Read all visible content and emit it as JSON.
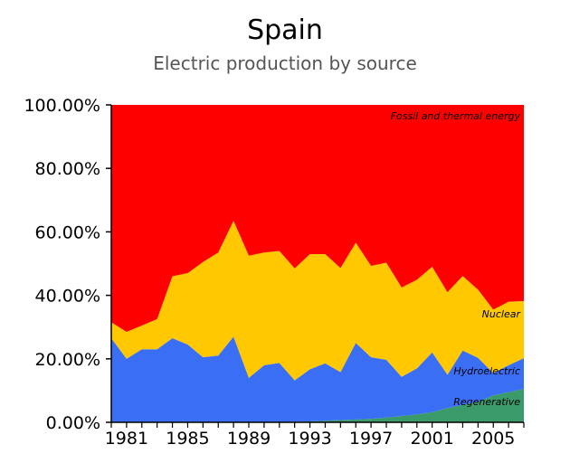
{
  "chart_data": {
    "type": "area",
    "stacked": true,
    "percent": true,
    "title": "Spain",
    "subtitle": "Electric production by source",
    "xlabel": "",
    "ylabel": "",
    "x": [
      1980,
      1981,
      1982,
      1983,
      1984,
      1985,
      1986,
      1987,
      1988,
      1989,
      1990,
      1991,
      1992,
      1993,
      1994,
      1995,
      1996,
      1997,
      1998,
      1999,
      2000,
      2001,
      2002,
      2003,
      2004,
      2005,
      2006,
      2007
    ],
    "xlim": [
      1980,
      2007
    ],
    "x_ticks": [
      1981,
      1985,
      1989,
      1993,
      1997,
      2001,
      2005
    ],
    "x_tick_labels": [
      "1981",
      "1985",
      "1989",
      "1993",
      "1997",
      "2001",
      "2005"
    ],
    "ylim": [
      0,
      100
    ],
    "y_ticks": [
      0,
      20,
      40,
      60,
      80,
      100
    ],
    "y_tick_labels": [
      "0.00%",
      "20.00%",
      "40.00%",
      "60.00%",
      "80.00%",
      "100.00%"
    ],
    "grid": false,
    "series": [
      {
        "name": "Regenerative",
        "color": "#3a9a6a",
        "values": [
          0.0,
          0.0,
          0.0,
          0.0,
          0.0,
          0.0,
          0.0,
          0.0,
          0.0,
          0.0,
          0.0,
          0.1,
          0.2,
          0.3,
          0.5,
          0.7,
          0.9,
          1.1,
          1.5,
          2.0,
          2.5,
          3.2,
          4.5,
          5.5,
          6.5,
          8.5,
          9.5,
          10.5
        ]
      },
      {
        "name": "Hydroelectric",
        "color": "#3a6ef5",
        "values": [
          26.5,
          20.0,
          23.0,
          23.0,
          26.5,
          24.5,
          20.5,
          21.0,
          27.0,
          14.0,
          18.0,
          18.6,
          13.0,
          16.4,
          18.1,
          15.1,
          24.1,
          19.4,
          18.2,
          12.3,
          14.5,
          18.8,
          10.5,
          17.1,
          13.8,
          7.0,
          8.5,
          9.7
        ]
      },
      {
        "name": "Nuclear",
        "color": "#ffc800",
        "values": [
          5.0,
          8.5,
          7.5,
          9.5,
          19.5,
          22.5,
          30.0,
          32.5,
          36.5,
          38.5,
          35.5,
          35.3,
          35.3,
          36.3,
          34.4,
          32.8,
          31.6,
          28.8,
          30.6,
          28.2,
          27.9,
          27.0,
          26.0,
          23.5,
          21.5,
          20.0,
          20.0,
          18.0
        ]
      },
      {
        "name": "Fossil and thermal energy",
        "color": "#ff0000",
        "values": [
          68.5,
          71.5,
          69.5,
          67.5,
          54.0,
          53.0,
          49.5,
          46.5,
          36.5,
          47.5,
          46.5,
          46.0,
          51.5,
          47.0,
          47.0,
          51.4,
          43.4,
          50.7,
          49.7,
          57.5,
          55.1,
          51.0,
          59.0,
          53.9,
          58.2,
          64.5,
          62.0,
          61.8
        ]
      }
    ]
  }
}
